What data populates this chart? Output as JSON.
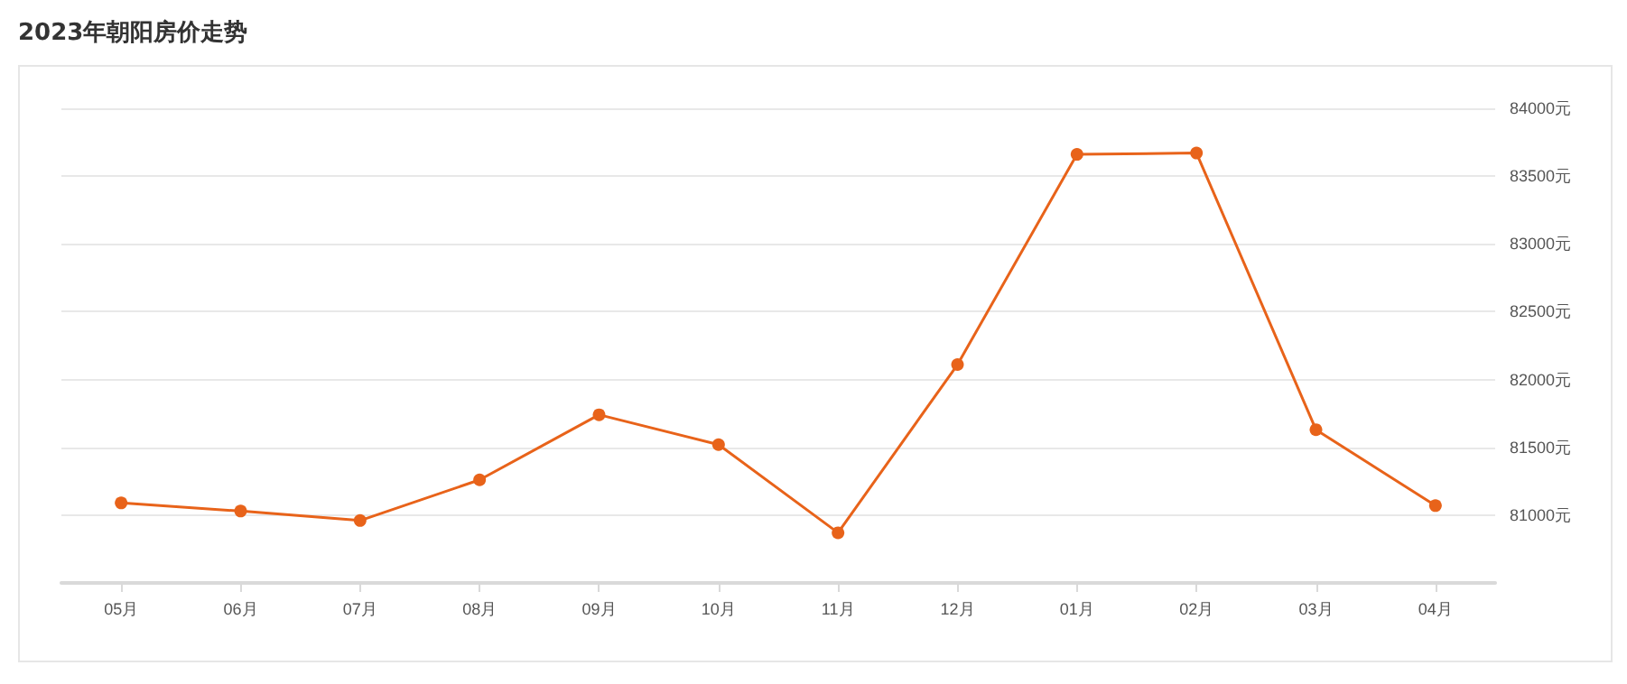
{
  "chart_data": {
    "type": "line",
    "title": "2023年朝阳房价走势",
    "categories": [
      "05月",
      "06月",
      "07月",
      "08月",
      "09月",
      "10月",
      "11月",
      "12月",
      "01月",
      "02月",
      "03月",
      "04月"
    ],
    "series": [
      {
        "color": "#e8631a",
        "values": [
          81090,
          81030,
          80960,
          81260,
          81740,
          81520,
          80870,
          82110,
          83660,
          83670,
          81630,
          81070
        ]
      }
    ],
    "ylim": [
      80500,
      84000
    ],
    "yticks": [
      {
        "value": 81000,
        "label": "81000元"
      },
      {
        "value": 81500,
        "label": "81500元"
      },
      {
        "value": 82000,
        "label": "82000元"
      },
      {
        "value": 82500,
        "label": "82500元"
      },
      {
        "value": 83000,
        "label": "83000元"
      },
      {
        "value": 83500,
        "label": "83500元"
      },
      {
        "value": 84000,
        "label": "84000元"
      }
    ],
    "grid": "y",
    "marker": "circle",
    "line_style": "solid"
  }
}
